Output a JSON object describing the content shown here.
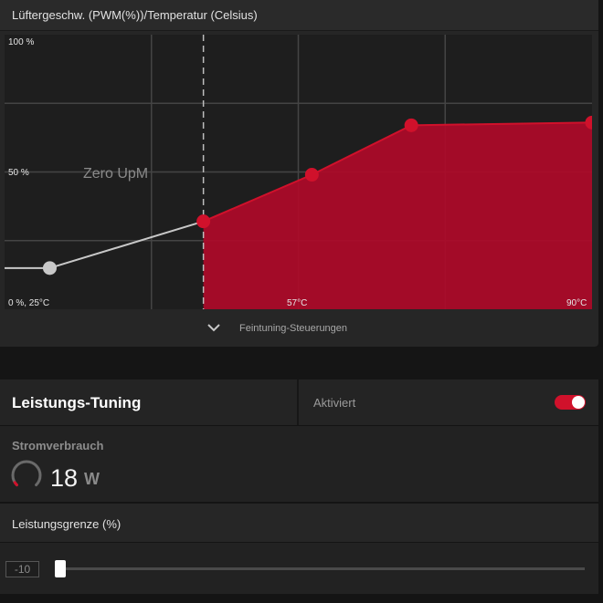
{
  "fan_curve": {
    "title": "Lüftergeschw. (PWM(%))/Temperatur (Celsius)",
    "zero_rpm_label": "Zero UpM",
    "fine_tuning_label": "Feintuning-Steuerungen",
    "colors": {
      "accent": "#d0112b",
      "fill": "#ad0a29",
      "inactive_line": "#c8c8c8",
      "grid": "#444444"
    },
    "chart_data": {
      "type": "area",
      "xlabel": "",
      "ylabel": "",
      "xlim": [
        25,
        90
      ],
      "ylim": [
        0,
        100
      ],
      "grid": true,
      "tick_labels": {
        "y_top": "100 %",
        "y_mid": "50 %",
        "origin": "0 %, 25°C",
        "x_mid": "57°C",
        "x_max": "90°C"
      },
      "zero_rpm_threshold_c": 47,
      "points": [
        {
          "x": 30,
          "y": 15,
          "active": false
        },
        {
          "x": 47,
          "y": 32,
          "active": true
        },
        {
          "x": 59,
          "y": 49,
          "active": true
        },
        {
          "x": 70,
          "y": 67,
          "active": true
        },
        {
          "x": 90,
          "y": 68,
          "active": true
        }
      ]
    }
  },
  "performance": {
    "title": "Leistungs-Tuning",
    "status": "Aktiviert",
    "enabled": true,
    "power_label": "Stromverbrauch",
    "power_value": "18",
    "power_unit": "W",
    "power_fraction": 0.05,
    "limit_label": "Leistungsgrenze (%)",
    "limit_value": "-10",
    "limit_min": -10,
    "limit_max": 15
  }
}
